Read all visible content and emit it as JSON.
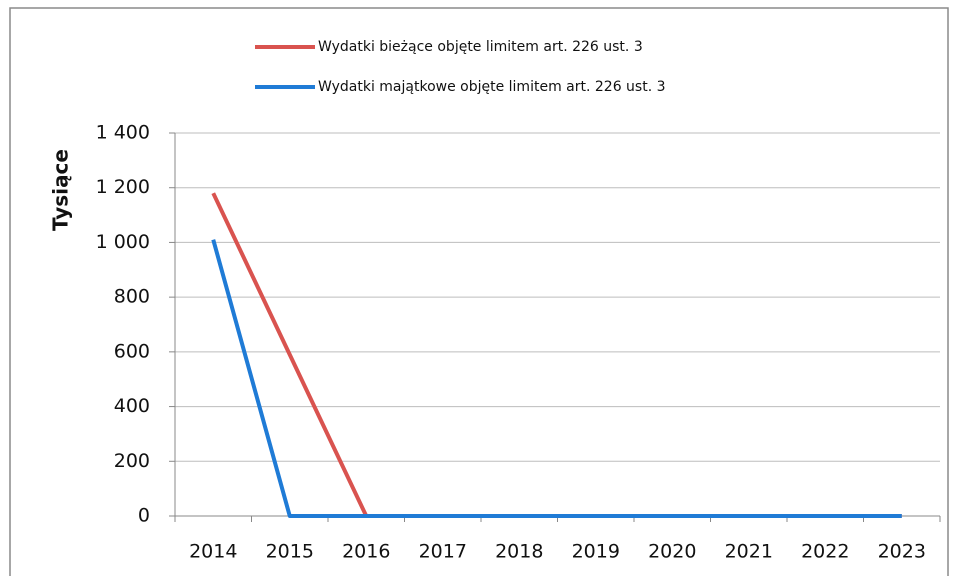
{
  "chart_data": {
    "type": "line",
    "y_label": "Tysiące",
    "categories": [
      "2014",
      "2015",
      "2016",
      "2017",
      "2018",
      "2019",
      "2020",
      "2021",
      "2022",
      "2023"
    ],
    "series": [
      {
        "name": "Wydatki bieżące objęte limitem art. 226 ust. 3",
        "color": "#d9534f",
        "values": [
          1180,
          590,
          0,
          0,
          0,
          0,
          0,
          0,
          0,
          0
        ]
      },
      {
        "name": "Wydatki majątkowe objęte limitem art. 226 ust. 3",
        "color": "#1f7bd6",
        "values": [
          1010,
          0,
          0,
          0,
          0,
          0,
          0,
          0,
          0,
          0
        ]
      }
    ],
    "ylim": [
      0,
      1400
    ],
    "yticks": [
      0,
      200,
      400,
      600,
      800,
      {
        "value": 1000,
        "label": "1 000"
      },
      {
        "value": 1200,
        "label": "1 200"
      },
      {
        "value": 1400,
        "label": "1 400"
      }
    ],
    "grid": true,
    "legend": "top"
  }
}
